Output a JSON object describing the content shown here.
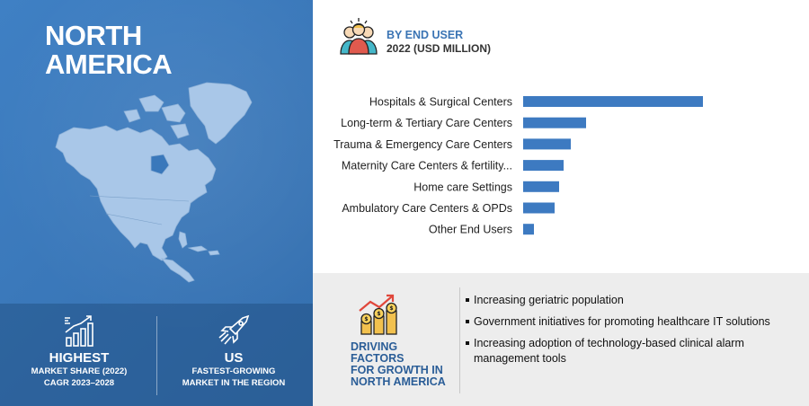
{
  "left": {
    "title_line1": "NORTH",
    "title_line2": "AMERICA",
    "highest": {
      "label": "HIGHEST",
      "line1": "MARKET SHARE (2022)",
      "line2": "CAGR 2023–2028"
    },
    "us": {
      "label": "US",
      "line1": "FASTEST-GROWING",
      "line2": "MARKET IN THE REGION"
    }
  },
  "chart": {
    "title": "BY END USER",
    "subtitle": "2022 (USD MILLION)"
  },
  "chart_data": {
    "type": "bar",
    "orientation": "horizontal",
    "title": "BY END USER",
    "subtitle": "2022 (USD MILLION)",
    "categories": [
      "Hospitals & Surgical Centers",
      "Long-term & Tertiary Care Centers",
      "Trauma & Emergency Care Centers",
      "Maternity Care Centers & fertility...",
      "Home care Settings",
      "Ambulatory Care Centers & OPDs",
      "Other End Users"
    ],
    "values": [
      200,
      70,
      53,
      45,
      40,
      35,
      12
    ],
    "xlim": [
      0,
      220
    ],
    "color": "#3d7ac1",
    "grid": false
  },
  "drivers": {
    "heading_line1": "DRIVING FACTORS",
    "heading_line2": "FOR GROWTH IN",
    "heading_line3": "NORTH AMERICA",
    "items": [
      "Increasing geriatric population",
      "Government initiatives for promoting healthcare IT solutions",
      "Increasing adoption of technology-based clinical alarm management tools"
    ]
  },
  "icons": {
    "people": "people-group-icon",
    "highest": "bar-chart-growth-icon",
    "us": "rocket-icon",
    "growth": "coins-growth-icon"
  }
}
